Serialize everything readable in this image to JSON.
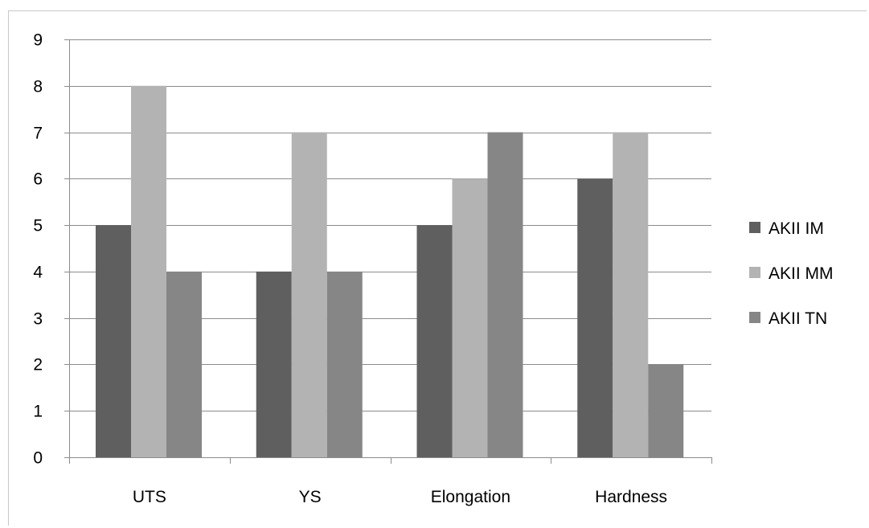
{
  "chart_data": {
    "type": "bar",
    "title": "",
    "xlabel": "",
    "ylabel": "",
    "categories": [
      "UTS",
      "YS",
      "Elongation",
      "Hardness"
    ],
    "ylim": [
      0,
      9
    ],
    "y_ticks": [
      "0",
      "1",
      "2",
      "3",
      "4",
      "5",
      "6",
      "7",
      "8",
      "9"
    ],
    "grid": true,
    "legend_position": "right",
    "series": [
      {
        "name": "AKII IM",
        "color": "#5f5f5f",
        "values": [
          5,
          4,
          5,
          6
        ]
      },
      {
        "name": "AKII MM",
        "color": "#b3b3b3",
        "values": [
          8,
          7,
          6,
          7
        ]
      },
      {
        "name": "AKII TN",
        "color": "#868686",
        "values": [
          4,
          4,
          7,
          2
        ]
      }
    ]
  }
}
